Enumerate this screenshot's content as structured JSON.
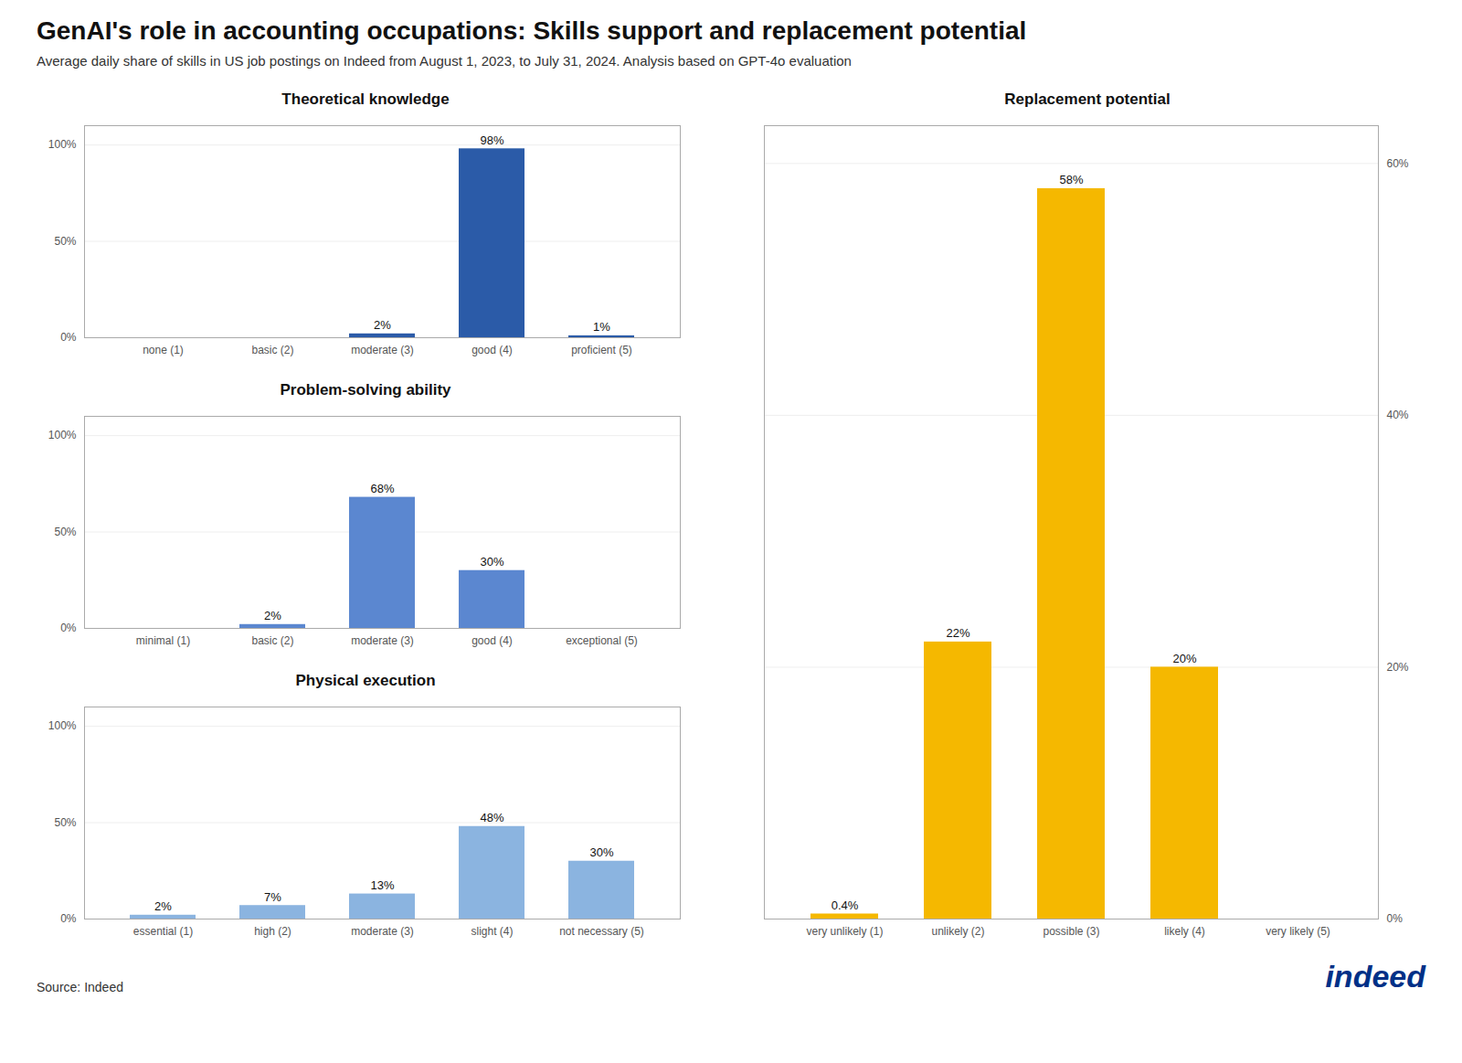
{
  "title": "GenAI's role in accounting occupations: Skills support and replacement potential",
  "subtitle": "Average daily share of skills in US job postings on Indeed from August 1, 2023, to July 31, 2024. Analysis based on GPT-4o evaluation",
  "source": "Source: Indeed",
  "annotations": [
    {
      "text": "indeed",
      "color": "#003087"
    }
  ],
  "chart_data": [
    {
      "type": "bar",
      "title": "Theoretical knowledge",
      "categories": [
        "none (1)",
        "basic (2)",
        "moderate (3)",
        "good (4)",
        "proficient (5)"
      ],
      "values": [
        0,
        0,
        2,
        98,
        1
      ],
      "data_labels": true,
      "value_labels": [
        null,
        null,
        "2%",
        "98%",
        "1%"
      ],
      "color": "#2B5BA8",
      "ylim": [
        0,
        110
      ],
      "yticks": [
        {
          "value": 0,
          "label": "0%"
        },
        {
          "value": 50,
          "label": "50%"
        },
        {
          "value": 100,
          "label": "100%"
        }
      ],
      "grid": true
    },
    {
      "type": "bar",
      "title": "Problem-solving ability",
      "categories": [
        "minimal (1)",
        "basic (2)",
        "moderate (3)",
        "good (4)",
        "exceptional (5)"
      ],
      "values": [
        0,
        2,
        68,
        30,
        0
      ],
      "data_labels": true,
      "value_labels": [
        null,
        "2%",
        "68%",
        "30%",
        null
      ],
      "color": "#5B87D0",
      "ylim": [
        0,
        110
      ],
      "yticks": [
        {
          "value": 0,
          "label": "0%"
        },
        {
          "value": 50,
          "label": "50%"
        },
        {
          "value": 100,
          "label": "100%"
        }
      ],
      "grid": true
    },
    {
      "type": "bar",
      "title": "Physical execution",
      "categories": [
        "essential (1)",
        "high (2)",
        "moderate (3)",
        "slight (4)",
        "not necessary (5)"
      ],
      "values": [
        2,
        7,
        13,
        48,
        30
      ],
      "data_labels": true,
      "value_labels": [
        "2%",
        "7%",
        "13%",
        "48%",
        "30%"
      ],
      "color": "#8BB4E0",
      "ylim": [
        0,
        110
      ],
      "yticks": [
        {
          "value": 0,
          "label": "0%"
        },
        {
          "value": 50,
          "label": "50%"
        },
        {
          "value": 100,
          "label": "100%"
        }
      ],
      "grid": true
    },
    {
      "type": "bar",
      "title": "Replacement potential",
      "categories": [
        "very unlikely (1)",
        "unlikely (2)",
        "possible (3)",
        "likely (4)",
        "very likely (5)"
      ],
      "values": [
        0.4,
        22,
        58,
        20,
        0
      ],
      "data_labels": true,
      "value_labels": [
        "0.4%",
        "22%",
        "58%",
        "20%",
        null
      ],
      "color": "#F5B800",
      "ylim": [
        0,
        63
      ],
      "yticks": [
        {
          "value": 0,
          "label": "0%"
        },
        {
          "value": 20,
          "label": "20%"
        },
        {
          "value": 40,
          "label": "40%"
        },
        {
          "value": 60,
          "label": "60%"
        }
      ],
      "grid": true
    }
  ]
}
